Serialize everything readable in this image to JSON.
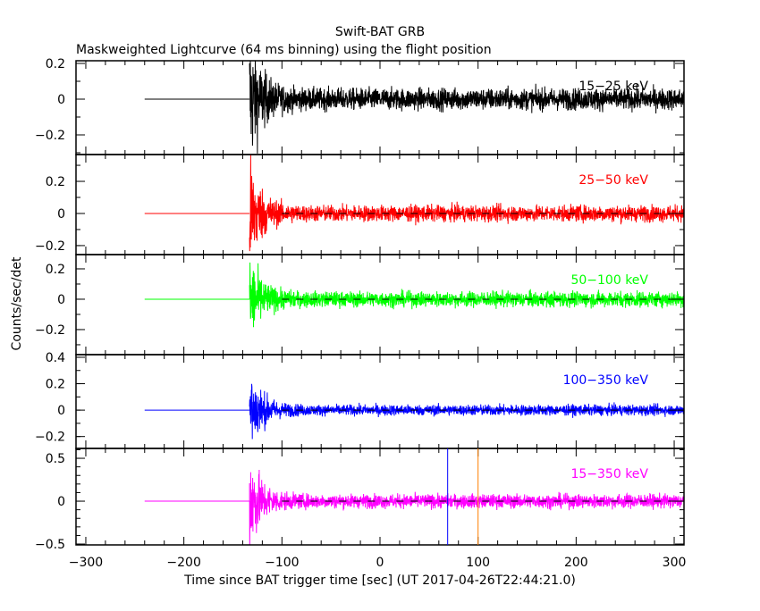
{
  "chart_data": {
    "type": "line",
    "title": "Swift-BAT GRB",
    "subtitle": "Maskweighted Lightcurve (64 ms binning) using the flight position",
    "xlabel": "Time since BAT trigger time [sec] (UT 2017-04-26T22:44:21.0)",
    "ylabel": "Counts/sec/det",
    "xlim": [
      -310,
      310
    ],
    "x_ticks": [
      -300,
      -200,
      -100,
      0,
      100,
      200,
      300
    ],
    "x_tick_labels": [
      "−300",
      "−200",
      "−100",
      "0",
      "100",
      "200",
      "300"
    ],
    "data_start": -240,
    "burst_start": -133,
    "dashed_zero_from": -100,
    "decay_timescale_sec": 12,
    "markers": [
      {
        "name": "blue-marker",
        "t": 69,
        "color": "#0000ff"
      },
      {
        "name": "orange-marker",
        "t": 100,
        "color": "#ff8000"
      }
    ],
    "series": [
      {
        "name": "15−25 keV",
        "color": "#000000",
        "ylim": [
          -0.31,
          0.215
        ],
        "y_ticks": [
          -0.2,
          0,
          0.2
        ],
        "y_tick_labels": [
          "−0.2",
          "0",
          "0.2"
        ],
        "minor": 0.1,
        "baseline_noise": 0.03,
        "burst_peak": 0.17,
        "dashed": false
      },
      {
        "name": "25−50 keV",
        "color": "#ff0000",
        "ylim": [
          -0.256,
          0.367
        ],
        "y_ticks": [
          -0.2,
          0,
          0.2
        ],
        "y_tick_labels": [
          "−0.2",
          "0",
          "0.2"
        ],
        "minor": 0.1,
        "baseline_noise": 0.025,
        "burst_peak": 0.16,
        "dashed": true
      },
      {
        "name": "50−100 keV",
        "color": "#00ff00",
        "ylim": [
          -0.365,
          0.294
        ],
        "y_ticks": [
          -0.2,
          0,
          0.2
        ],
        "y_tick_labels": [
          "−0.2",
          "0",
          "0.2"
        ],
        "minor": 0.1,
        "baseline_noise": 0.025,
        "burst_peak": 0.13,
        "dashed": true
      },
      {
        "name": "100−350 keV",
        "color": "#0000ff",
        "ylim": [
          -0.29,
          0.42
        ],
        "y_ticks": [
          -0.2,
          0,
          0.2,
          0.4
        ],
        "y_tick_labels": [
          "−0.2",
          "0",
          "0.2",
          "0.4"
        ],
        "minor": 0.1,
        "baseline_noise": 0.02,
        "burst_peak": 0.16,
        "dashed": true
      },
      {
        "name": "15−350 keV",
        "color": "#ff00ff",
        "ylim": [
          -0.51,
          0.615
        ],
        "y_ticks": [
          -0.5,
          0,
          0.5
        ],
        "y_tick_labels": [
          "−0.5",
          "0",
          "0.5"
        ],
        "minor": 0.1,
        "baseline_noise": 0.04,
        "burst_peak": 0.27,
        "dashed": true
      }
    ]
  }
}
